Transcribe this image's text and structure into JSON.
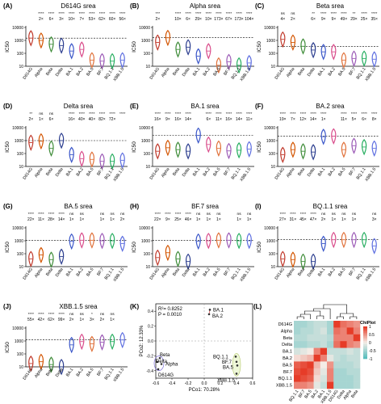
{
  "variants": [
    "D614G",
    "Alpha",
    "Beta",
    "Delta",
    "BA.1",
    "BA.2",
    "BA.5",
    "BF.7",
    "BQ.1.1",
    "XBB.1.5"
  ],
  "colors": [
    "#c0392b",
    "#d35400",
    "#3d8b37",
    "#2c3e8f",
    "#3a56c9",
    "#d94b8a",
    "#e0713a",
    "#9b59b6",
    "#27ae60",
    "#5d6ee0"
  ],
  "ylabel": "IC50",
  "yticks": [
    "10000",
    "1000",
    "100",
    "10"
  ],
  "panels": [
    {
      "letter": "(A)",
      "title": "D614G srea",
      "stars": [
        "",
        "****",
        "****",
        "****",
        "****",
        "****",
        "****",
        "****",
        "****",
        "****"
      ],
      "folds": [
        "",
        "2×",
        "6×",
        "3×",
        "10×",
        "7×",
        "53×",
        "62×",
        "60×",
        "56×"
      ],
      "medians": [
        1500,
        1000,
        500,
        400,
        150,
        200,
        30,
        25,
        25,
        30
      ]
    },
    {
      "letter": "(B)",
      "title": "Alpha srea",
      "stars": [
        "***",
        "",
        "****",
        "****",
        "****",
        "****",
        "****",
        "****",
        "****",
        "****"
      ],
      "folds": [
        "2×",
        "",
        "10×",
        "6×",
        "29×",
        "10×",
        "173×",
        "67×",
        "173×",
        "104×"
      ],
      "medians": [
        700,
        1600,
        200,
        300,
        60,
        150,
        12,
        22,
        12,
        18
      ]
    },
    {
      "letter": "(C)",
      "title": "Beta srea",
      "stars": [
        "ns",
        "ns",
        "",
        "**",
        "****",
        "****",
        "****",
        "**",
        "****",
        "****"
      ],
      "folds": [
        "4×",
        "2×",
        "",
        "6×",
        "9×",
        "9×",
        "49×",
        "29×",
        "25×",
        "35×"
      ],
      "medians": [
        1200,
        700,
        350,
        180,
        130,
        130,
        30,
        40,
        40,
        35
      ]
    },
    {
      "letter": "(D)",
      "title": "Delta srea",
      "stars": [
        "**",
        "ns",
        "ns",
        "",
        "****",
        "****",
        "****",
        "****",
        "****",
        "****"
      ],
      "folds": [
        "2×",
        "1×",
        "6×",
        "",
        "16×",
        "40×",
        "40×",
        "82×",
        "72×",
        ""
      ],
      "medians": [
        700,
        900,
        250,
        1000,
        80,
        40,
        35,
        25,
        25,
        30
      ]
    },
    {
      "letter": "(E)",
      "title": "BA.1 srea",
      "stars": [
        "****",
        "****",
        "****",
        "****",
        "",
        "****",
        "****",
        "****",
        "****",
        "****"
      ],
      "folds": [
        "16×",
        "9×",
        "16×",
        "14×",
        "",
        "6×",
        "11×",
        "16×",
        "14×",
        "11×"
      ],
      "medians": [
        150,
        280,
        200,
        150,
        2500,
        500,
        250,
        160,
        180,
        220
      ]
    },
    {
      "letter": "(F)",
      "title": "BA.2 srea",
      "stars": [
        "****",
        "****",
        "****",
        "****",
        "****",
        "",
        "****",
        "****",
        "****",
        "****"
      ],
      "folds": [
        "19×",
        "7×",
        "12×",
        "14×",
        "1×",
        "",
        "11×",
        "5×",
        "6×",
        "8×"
      ],
      "medians": [
        80,
        200,
        150,
        130,
        2000,
        2200,
        200,
        400,
        320,
        250
      ]
    },
    {
      "letter": "(G)",
      "title": "BA.5 srea",
      "stars": [
        "****",
        "****",
        "****",
        "****",
        "ns",
        "ns",
        "",
        "ns",
        "ns",
        "ns"
      ],
      "folds": [
        "22×",
        "11×",
        "28×",
        "14×",
        "1×",
        "1×",
        "",
        "1×",
        "1×",
        "2×"
      ],
      "medians": [
        40,
        80,
        35,
        60,
        900,
        1100,
        1100,
        1000,
        1000,
        600
      ]
    },
    {
      "letter": "(H)",
      "title": "BF.7 srea",
      "stars": [
        "****",
        "****",
        "****",
        "****",
        "ns",
        "ns",
        "ns",
        "",
        "ns",
        "ns"
      ],
      "folds": [
        "22×",
        "9×",
        "25×",
        "46×",
        "1×",
        "1×",
        "1×",
        "",
        "1×",
        "1×"
      ],
      "medians": [
        50,
        120,
        40,
        25,
        900,
        1000,
        1100,
        1100,
        1000,
        1000
      ]
    },
    {
      "letter": "(I)",
      "title": "BQ.1.1 srea",
      "stars": [
        "****",
        "****",
        "****",
        "****",
        "ns",
        "ns",
        "ns",
        "ns",
        "",
        "ns"
      ],
      "folds": [
        "27×",
        "31×",
        "45×",
        "47×",
        "2×",
        "1×",
        "1×",
        "1×",
        "",
        "3×"
      ],
      "medians": [
        40,
        35,
        25,
        25,
        600,
        1200,
        1200,
        1200,
        1200,
        400
      ]
    },
    {
      "letter": "(J)",
      "title": "XBB.1.5 srea",
      "stars": [
        "****",
        "****",
        "****",
        "****",
        "ns",
        "ns",
        "*",
        "ns",
        "ns",
        ""
      ],
      "folds": [
        "55×",
        "42×",
        "62×",
        "99×",
        "2×",
        "1×",
        "3×",
        "2×",
        "1×",
        ""
      ],
      "medians": [
        18,
        25,
        15,
        10,
        500,
        900,
        600,
        800,
        900,
        1200
      ]
    }
  ],
  "pca": {
    "letter": "(K)",
    "stat1": "R²= 0.8252",
    "stat2": "P = 0.0010",
    "xlabel": "PCo1: 70.28%",
    "ylabel": "PCo2: 12.33%",
    "xticks": [
      "-0.6",
      "-0.4",
      "-0.2",
      "0.0",
      "0.2",
      "0.4",
      "0.6"
    ],
    "yticks": [
      "0.4",
      "0.2",
      "0.0",
      "-0.2",
      "-0.4"
    ],
    "xlim": [
      -0.6,
      0.6
    ],
    "ylim": [
      -0.5,
      0.5
    ],
    "points": [
      {
        "label": "BA.1",
        "x": 0.07,
        "y": 0.42
      },
      {
        "label": "BA.2",
        "x": 0.06,
        "y": 0.36
      },
      {
        "label": "Beta",
        "x": -0.55,
        "y": -0.23
      },
      {
        "label": "Delta",
        "x": -0.58,
        "y": -0.28
      },
      {
        "label": "Alpha",
        "x": -0.53,
        "y": -0.31
      },
      {
        "label": "D614G",
        "x": -0.57,
        "y": -0.38
      },
      {
        "label": "BQ.1.1",
        "x": 0.39,
        "y": -0.21
      },
      {
        "label": "BF.7",
        "x": 0.4,
        "y": -0.28
      },
      {
        "label": "BA.5",
        "x": 0.41,
        "y": -0.33
      },
      {
        "label": "XBB.1.5",
        "x": 0.4,
        "y": -0.44
      }
    ]
  },
  "heatmap": {
    "letter": "(L)",
    "rows": [
      "D614G",
      "Alpha",
      "Beta",
      "Delta",
      "BA.1",
      "BA.2",
      "BA.5",
      "BF.7",
      "BQ.1.1",
      "XBB.1.5"
    ],
    "cols": [
      "BQ.1.1",
      "BF.7",
      "BA.5",
      "BA.2",
      "BA.1",
      "XBB.1.5",
      "D614G",
      "Delta",
      "Alpha",
      "Beta"
    ],
    "legend_title": "ChiPlot",
    "legend_ticks": [
      "1",
      "0.5",
      "0",
      "-0.5",
      "-1"
    ],
    "values": [
      [
        -0.5,
        -0.5,
        -0.4,
        -0.3,
        -0.3,
        -0.5,
        1,
        0.7,
        0.6,
        0.5
      ],
      [
        -0.5,
        -0.4,
        -0.4,
        -0.3,
        -0.2,
        -0.5,
        0.7,
        0.6,
        1,
        0.6
      ],
      [
        -0.4,
        -0.4,
        -0.3,
        -0.3,
        -0.3,
        -0.4,
        0.6,
        0.6,
        0.6,
        1
      ],
      [
        -0.5,
        -0.5,
        -0.4,
        -0.4,
        -0.3,
        -0.5,
        0.7,
        1,
        0.6,
        0.5
      ],
      [
        -0.2,
        -0.1,
        0.0,
        0.6,
        1,
        -0.3,
        -0.3,
        -0.3,
        -0.2,
        -0.3
      ],
      [
        0.1,
        0.2,
        0.3,
        1,
        0.6,
        -0.1,
        -0.3,
        -0.4,
        -0.3,
        -0.3
      ],
      [
        0.8,
        0.9,
        1,
        0.3,
        0.0,
        0.5,
        -0.4,
        -0.4,
        -0.4,
        -0.3
      ],
      [
        0.9,
        1,
        0.9,
        0.2,
        -0.1,
        0.6,
        -0.5,
        -0.5,
        -0.4,
        -0.4
      ],
      [
        1,
        0.9,
        0.8,
        0.1,
        -0.2,
        0.6,
        -0.5,
        -0.5,
        -0.5,
        -0.4
      ],
      [
        0.6,
        0.6,
        0.5,
        -0.1,
        -0.3,
        1,
        -0.5,
        -0.5,
        -0.5,
        -0.4
      ]
    ]
  }
}
